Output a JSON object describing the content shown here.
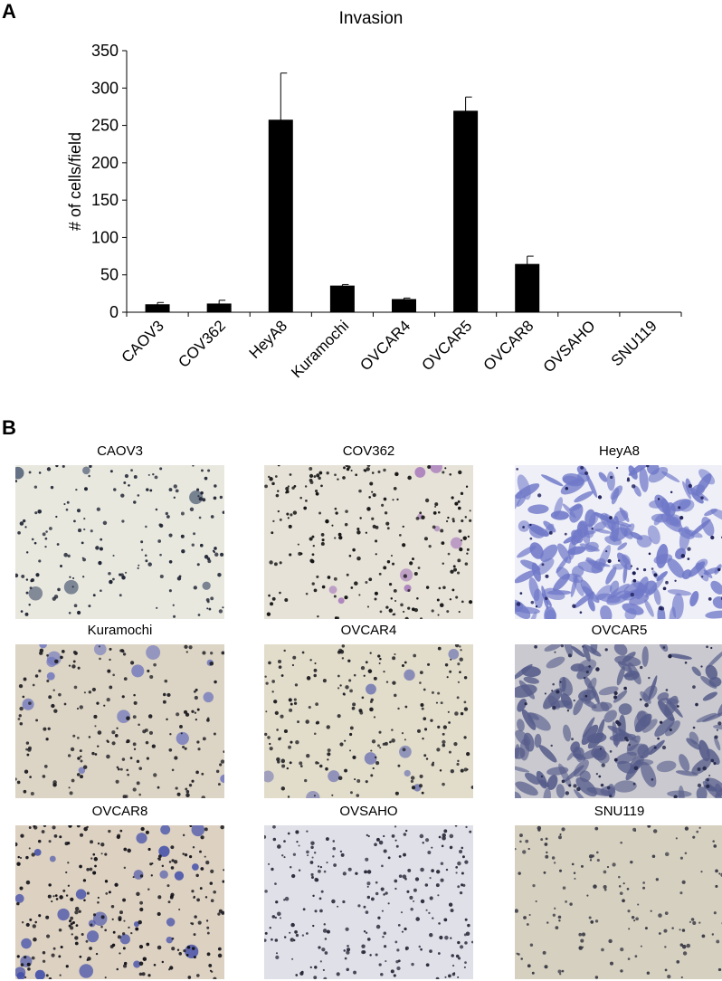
{
  "panel_a": {
    "letter": "A"
  },
  "panel_b": {
    "letter": "B"
  },
  "chart_data": {
    "type": "bar",
    "title": "Invasion",
    "xlabel": "",
    "ylabel": "# of cells/field",
    "ylim": [
      0,
      350
    ],
    "yticks": [
      0,
      50,
      100,
      150,
      200,
      250,
      300,
      350
    ],
    "categories": [
      "CAOV3",
      "COV362",
      "HeyA8",
      "Kuramochi",
      "OVCAR4",
      "OVCAR5",
      "OVCAR8",
      "OVSAHO",
      "SNU119"
    ],
    "values": [
      10,
      11,
      257,
      35,
      17,
      269,
      64,
      0,
      0
    ],
    "error_upper": [
      3,
      5,
      63,
      2,
      2,
      19,
      11,
      0,
      0
    ],
    "bar_color": "#000000",
    "grid": false
  },
  "micrographs": [
    {
      "label": "CAOV3",
      "bg": "#e9e8df",
      "nuc": "#1e2433",
      "blob": "#3f4f6a",
      "cells": 6,
      "nuclei": 170,
      "texture": "sparse"
    },
    {
      "label": "COV362",
      "bg": "#e6e2d8",
      "nuc": "#141414",
      "blob": "#a678ba",
      "cells": 9,
      "nuclei": 230,
      "texture": "sparse"
    },
    {
      "label": "HeyA8",
      "bg": "#eeeff7",
      "nuc": "#1b1c55",
      "blob": "#6f78c8",
      "cells": 170,
      "nuclei": 60,
      "texture": "dense"
    },
    {
      "label": "Kuramochi",
      "bg": "#dcd4c4",
      "nuc": "#1f1f25",
      "blob": "#6d74bd",
      "cells": 14,
      "nuclei": 190,
      "texture": "sparse"
    },
    {
      "label": "OVCAR4",
      "bg": "#e2dccb",
      "nuc": "#1e1e22",
      "blob": "#7479b3",
      "cells": 10,
      "nuclei": 210,
      "texture": "sparse"
    },
    {
      "label": "OVCAR5",
      "bg": "#c9c9cf",
      "nuc": "#202344",
      "blob": "#565c8a",
      "cells": 150,
      "nuclei": 80,
      "texture": "dense"
    },
    {
      "label": "OVCAR8",
      "bg": "#ddd1c2",
      "nuc": "#121218",
      "blob": "#3d4aa8",
      "cells": 28,
      "nuclei": 240,
      "texture": "sparse"
    },
    {
      "label": "OVSAHO",
      "bg": "#dfe0e8",
      "nuc": "#2a2a3a",
      "blob": "#9fa1c2",
      "cells": 0,
      "nuclei": 260,
      "texture": "sparse"
    },
    {
      "label": "SNU119",
      "bg": "#d6d0c0",
      "nuc": "#3a3a45",
      "blob": "#9092b0",
      "cells": 0,
      "nuclei": 150,
      "texture": "sparse"
    }
  ]
}
